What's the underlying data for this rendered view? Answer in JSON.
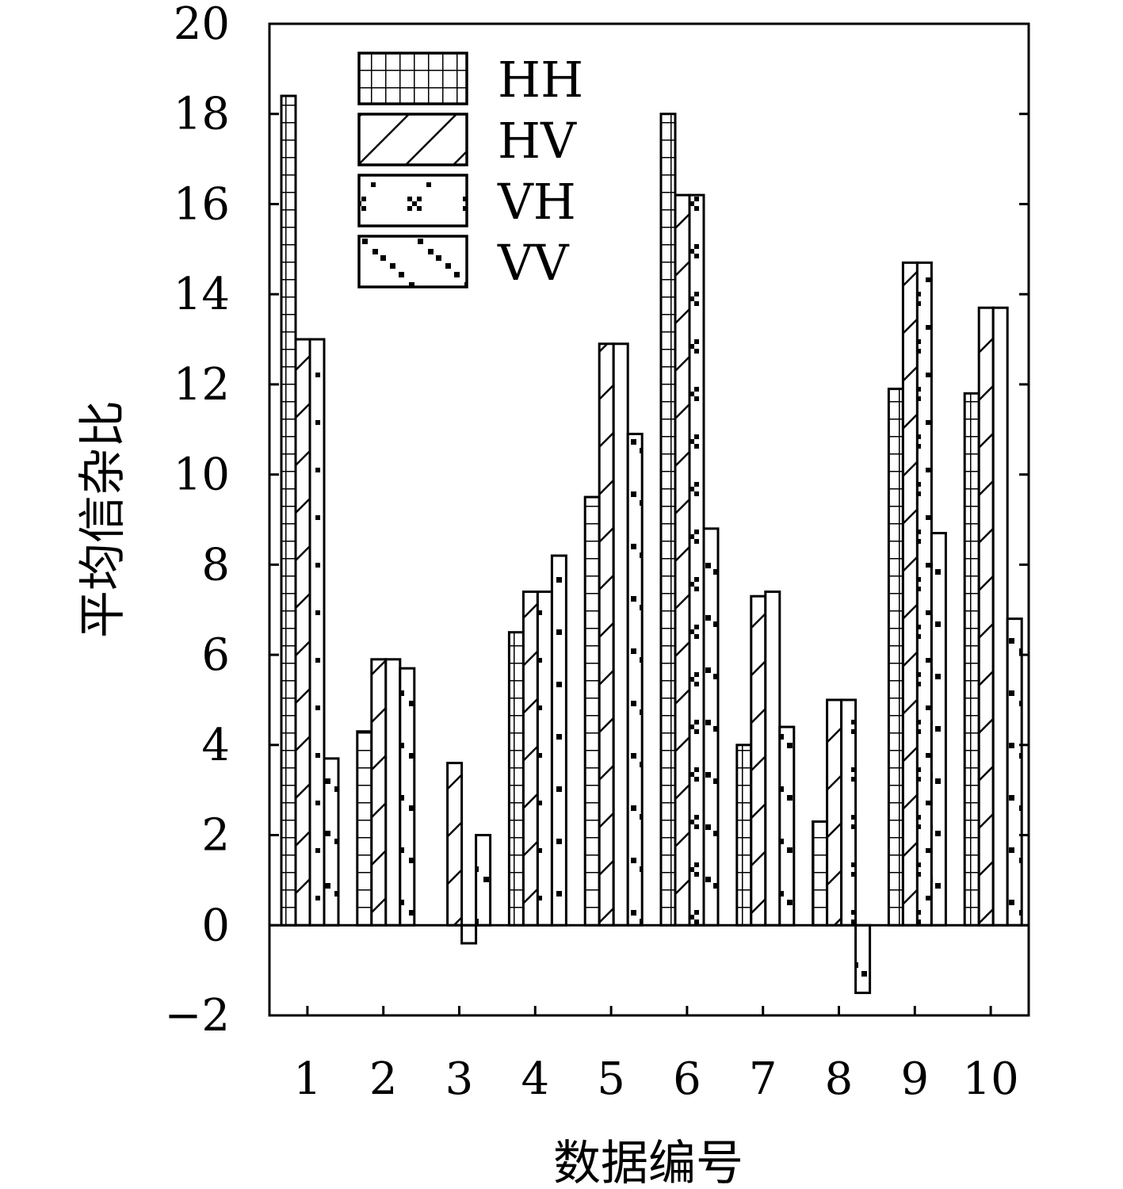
{
  "chart_data": {
    "type": "bar",
    "xlabel": "数据编号",
    "ylabel": "平均信杂比",
    "ylim": [
      -2,
      20
    ],
    "yticks": [
      -2,
      0,
      2,
      4,
      6,
      8,
      10,
      12,
      14,
      16,
      18,
      20
    ],
    "categories": [
      "1",
      "2",
      "3",
      "4",
      "5",
      "6",
      "7",
      "8",
      "9",
      "10"
    ],
    "legend_position": "top-left",
    "series": [
      {
        "name": "HH",
        "pattern": "grid",
        "values": [
          18.4,
          4.3,
          0.0,
          6.5,
          9.5,
          18.0,
          4.0,
          2.3,
          11.9,
          11.8
        ]
      },
      {
        "name": "HV",
        "pattern": "diagonal-hatch",
        "values": [
          13.0,
          5.9,
          3.6,
          7.4,
          12.9,
          16.2,
          7.3,
          5.0,
          14.7,
          13.7
        ]
      },
      {
        "name": "VH",
        "pattern": "sparse-dots",
        "values": [
          13.0,
          5.9,
          -0.4,
          7.4,
          12.9,
          16.2,
          7.4,
          5.0,
          14.7,
          13.7
        ]
      },
      {
        "name": "VV",
        "pattern": "dotted-diagonal",
        "values": [
          3.7,
          5.7,
          2.0,
          8.2,
          10.9,
          8.8,
          4.4,
          -1.5,
          8.7,
          6.8
        ]
      }
    ],
    "colors": {
      "stroke": "#000000",
      "fill": "#ffffff"
    }
  }
}
